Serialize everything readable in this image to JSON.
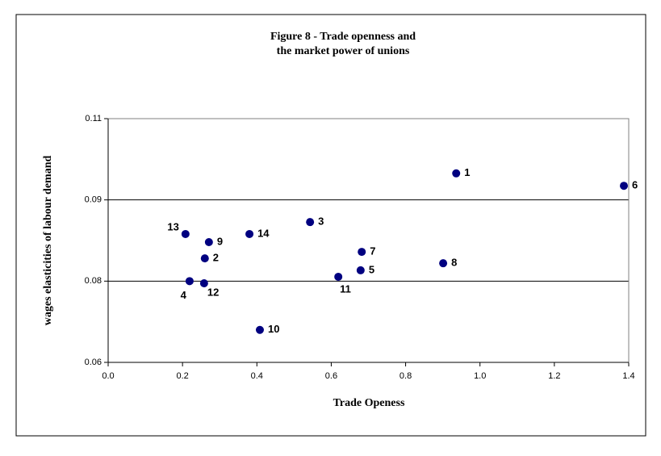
{
  "chart_data": {
    "type": "scatter",
    "title": [
      "Figure 8 - Trade openness and",
      "the market power of unions"
    ],
    "x_label": "Trade Openess",
    "y_label": "wages elasticities of labour demand",
    "x": [
      0.936,
      0.26,
      0.543,
      0.219,
      0.679,
      1.387,
      0.682,
      0.901,
      0.271,
      0.408,
      0.619,
      0.258,
      0.208,
      0.38
    ],
    "values": [
      0.0949,
      0.0792,
      0.0859,
      0.075,
      0.077,
      0.0926,
      0.0804,
      0.0783,
      0.0822,
      0.066,
      0.0758,
      0.0746,
      0.0837,
      0.0837
    ],
    "point_labels": [
      "1",
      "2",
      "3",
      "4",
      "5",
      "6",
      "7",
      "8",
      "9",
      "10",
      "11",
      "12",
      "13",
      "14"
    ],
    "color": "#000080",
    "xlim": [
      0,
      1.4
    ],
    "xticks": [
      {
        "value": 0,
        "label": "0.0"
      },
      0.2,
      0.4,
      0.6,
      0.8,
      {
        "value": 1,
        "label": "1.0"
      },
      1.2,
      1.4
    ],
    "ylim": [
      0.06,
      0.105
    ],
    "yticks": [
      0.06,
      {
        "value": 0.075,
        "label": "0.08"
      },
      0.09,
      {
        "value": 0.105,
        "label": "0.11"
      }
    ],
    "grid": true
  }
}
